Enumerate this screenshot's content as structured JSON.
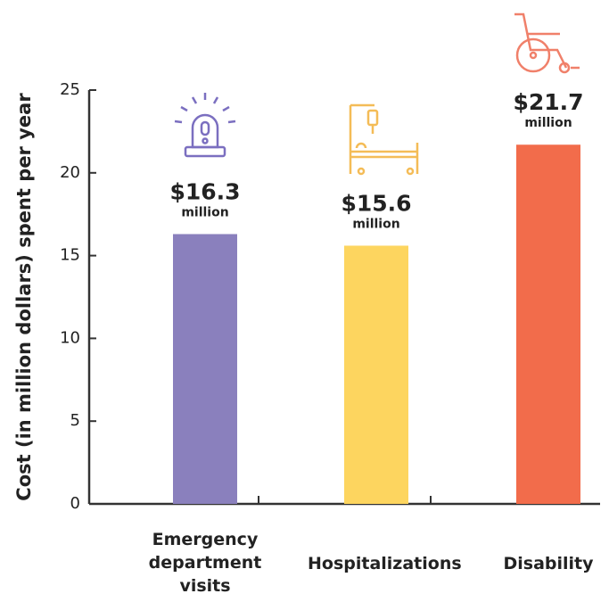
{
  "chart_data": {
    "type": "bar",
    "y_label": "Cost (in million dollars) spent per year",
    "categories": [
      "Emergency department visits",
      "Hospitalizations",
      "Disability"
    ],
    "values": [
      16.3,
      15.6,
      21.7
    ],
    "value_labels": [
      "$16.3",
      "$15.6",
      "$21.7"
    ],
    "value_unit_labels": [
      "million",
      "million",
      "million"
    ],
    "colors": [
      "#8a80bd",
      "#fdd55f",
      "#f26c4b"
    ],
    "ylim": [
      0,
      25
    ],
    "yticks": [
      0,
      5,
      10,
      15,
      20,
      25
    ],
    "grid": false
  }
}
